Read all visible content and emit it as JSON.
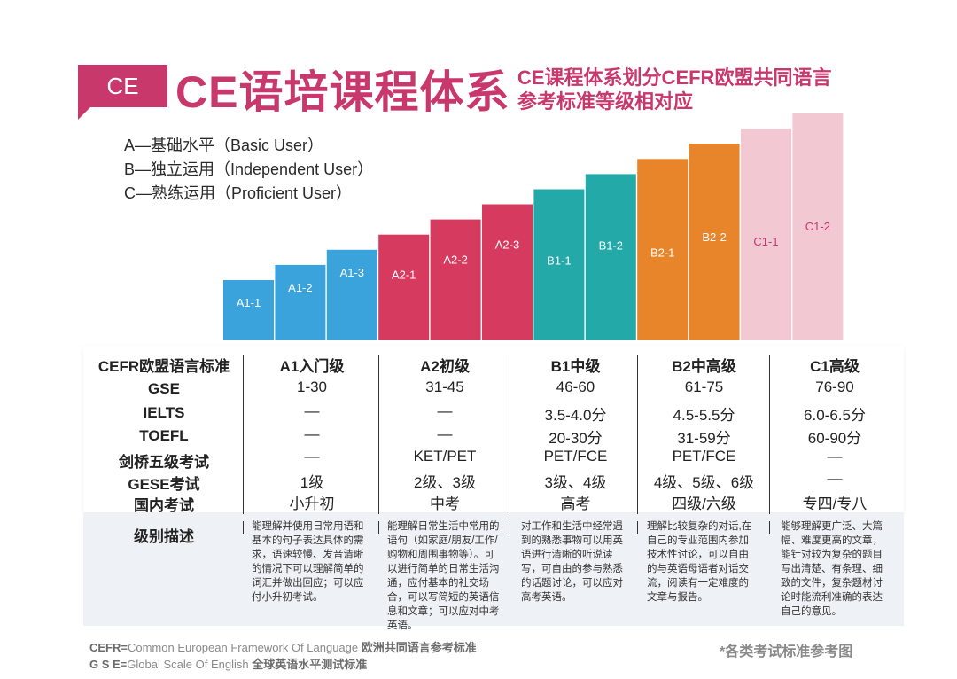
{
  "header": {
    "tag": "CE",
    "title": "CE语培课程体系",
    "subtitle_line1": "CE课程体系划分CEFR欧盟共同语言",
    "subtitle_line2": "参考标准等级相对应",
    "brand_color": "#c8386b"
  },
  "legend": [
    "A—基础水平（Basic User）",
    "B—独立运用（Independent  User）",
    "C—熟练运用（Proficient  User）"
  ],
  "chart_data": {
    "type": "bar",
    "categories": [
      "A1-1",
      "A1-2",
      "A1-3",
      "A2-1",
      "A2-2",
      "A2-3",
      "B1-1",
      "B1-2",
      "B2-1",
      "B2-2",
      "C1-1",
      "C1-2"
    ],
    "values": [
      1,
      2,
      3,
      4,
      5,
      6,
      7,
      8,
      9,
      10,
      11,
      12
    ],
    "groups": [
      {
        "name": "A1",
        "color": "#3ba3dc"
      },
      {
        "name": "A2",
        "color": "#d63a5e"
      },
      {
        "name": "B1",
        "color": "#22a9a8"
      },
      {
        "name": "B2",
        "color": "#e8852b"
      },
      {
        "name": "C1",
        "color": "#f2c9d3"
      }
    ],
    "group_of_bar": [
      0,
      0,
      0,
      1,
      1,
      1,
      2,
      2,
      3,
      3,
      4,
      4
    ],
    "label_colors": [
      "#ffffff",
      "#ffffff",
      "#ffffff",
      "#ffffff",
      "#ffffff",
      "#ffffff",
      "#ffffff",
      "#ffffff",
      "#ffffff",
      "#ffffff",
      "#c8386b",
      "#c8386b"
    ]
  },
  "table": {
    "header": [
      "CEFR欧盟语言标准",
      "A1入门级",
      "A2初级",
      "B1中级",
      "B2中高级",
      "C1高级"
    ],
    "rows": [
      {
        "label": "GSE",
        "cells": [
          "1-30",
          "31-45",
          "46-60",
          "61-75",
          "76-90"
        ]
      },
      {
        "label": "IELTS",
        "cells": [
          "—",
          "—",
          "3.5-4.0分",
          "4.5-5.5分",
          "6.0-6.5分"
        ]
      },
      {
        "label": "TOEFL",
        "cells": [
          "—",
          "—",
          "20-30分",
          "31-59分",
          "60-90分"
        ]
      },
      {
        "label": "剑桥五级考试",
        "cells": [
          "—",
          "KET/PET",
          "PET/FCE",
          "PET/FCE",
          "—"
        ]
      },
      {
        "label": "GESE考试",
        "cells": [
          "1级",
          "2级、3级",
          "3级、4级",
          "4级、5级、6级",
          "—"
        ]
      },
      {
        "label": "国内考试",
        "cells": [
          "小升初",
          "中考",
          "高考",
          "四级/六级",
          "专四/专八"
        ]
      }
    ],
    "desc_label": "级别描述",
    "descriptions": [
      "能理解并使用日常用语和基本的句子表达具体的需求，语速较慢、发音清晰的情况下可以理解简单的词汇并做出回应；可以应付小升初考试。",
      "能理解日常生活中常用的语句（如家庭/朋友/工作/购物和周围事物等）。可以进行简单的日常生活沟通，应付基本的社交场合，可以写简短的英语信息和文章；可以应对中考英语。",
      "对工作和生活中经常遇到的熟悉事物可以用英语进行清晰的听说读写，可自由的参与熟悉的话题讨论，可以应对高考英语。",
      "理解比较复杂的对话,在自己的专业范围内参加技术性讨论，可以自由的与英语母语者对话交流，阅读有一定难度的文章与报告。",
      "能够理解更广泛、大篇幅、难度更高的文章，能针对较为复杂的题目写出清楚、有条理、细致的文件，复杂题材讨论时能流利准确的表达自己的意见。"
    ]
  },
  "footer": {
    "line1_abbr": "CEFR=",
    "line1_en": "Common European Framework Of Language",
    "line1_cn": "欧洲共同语言参考标准",
    "line2_abbr": "G S E=",
    "line2_en": "Global Scale Of English",
    "line2_cn": "全球英语水平测试标准",
    "note": "*各类考试标准参考图"
  }
}
